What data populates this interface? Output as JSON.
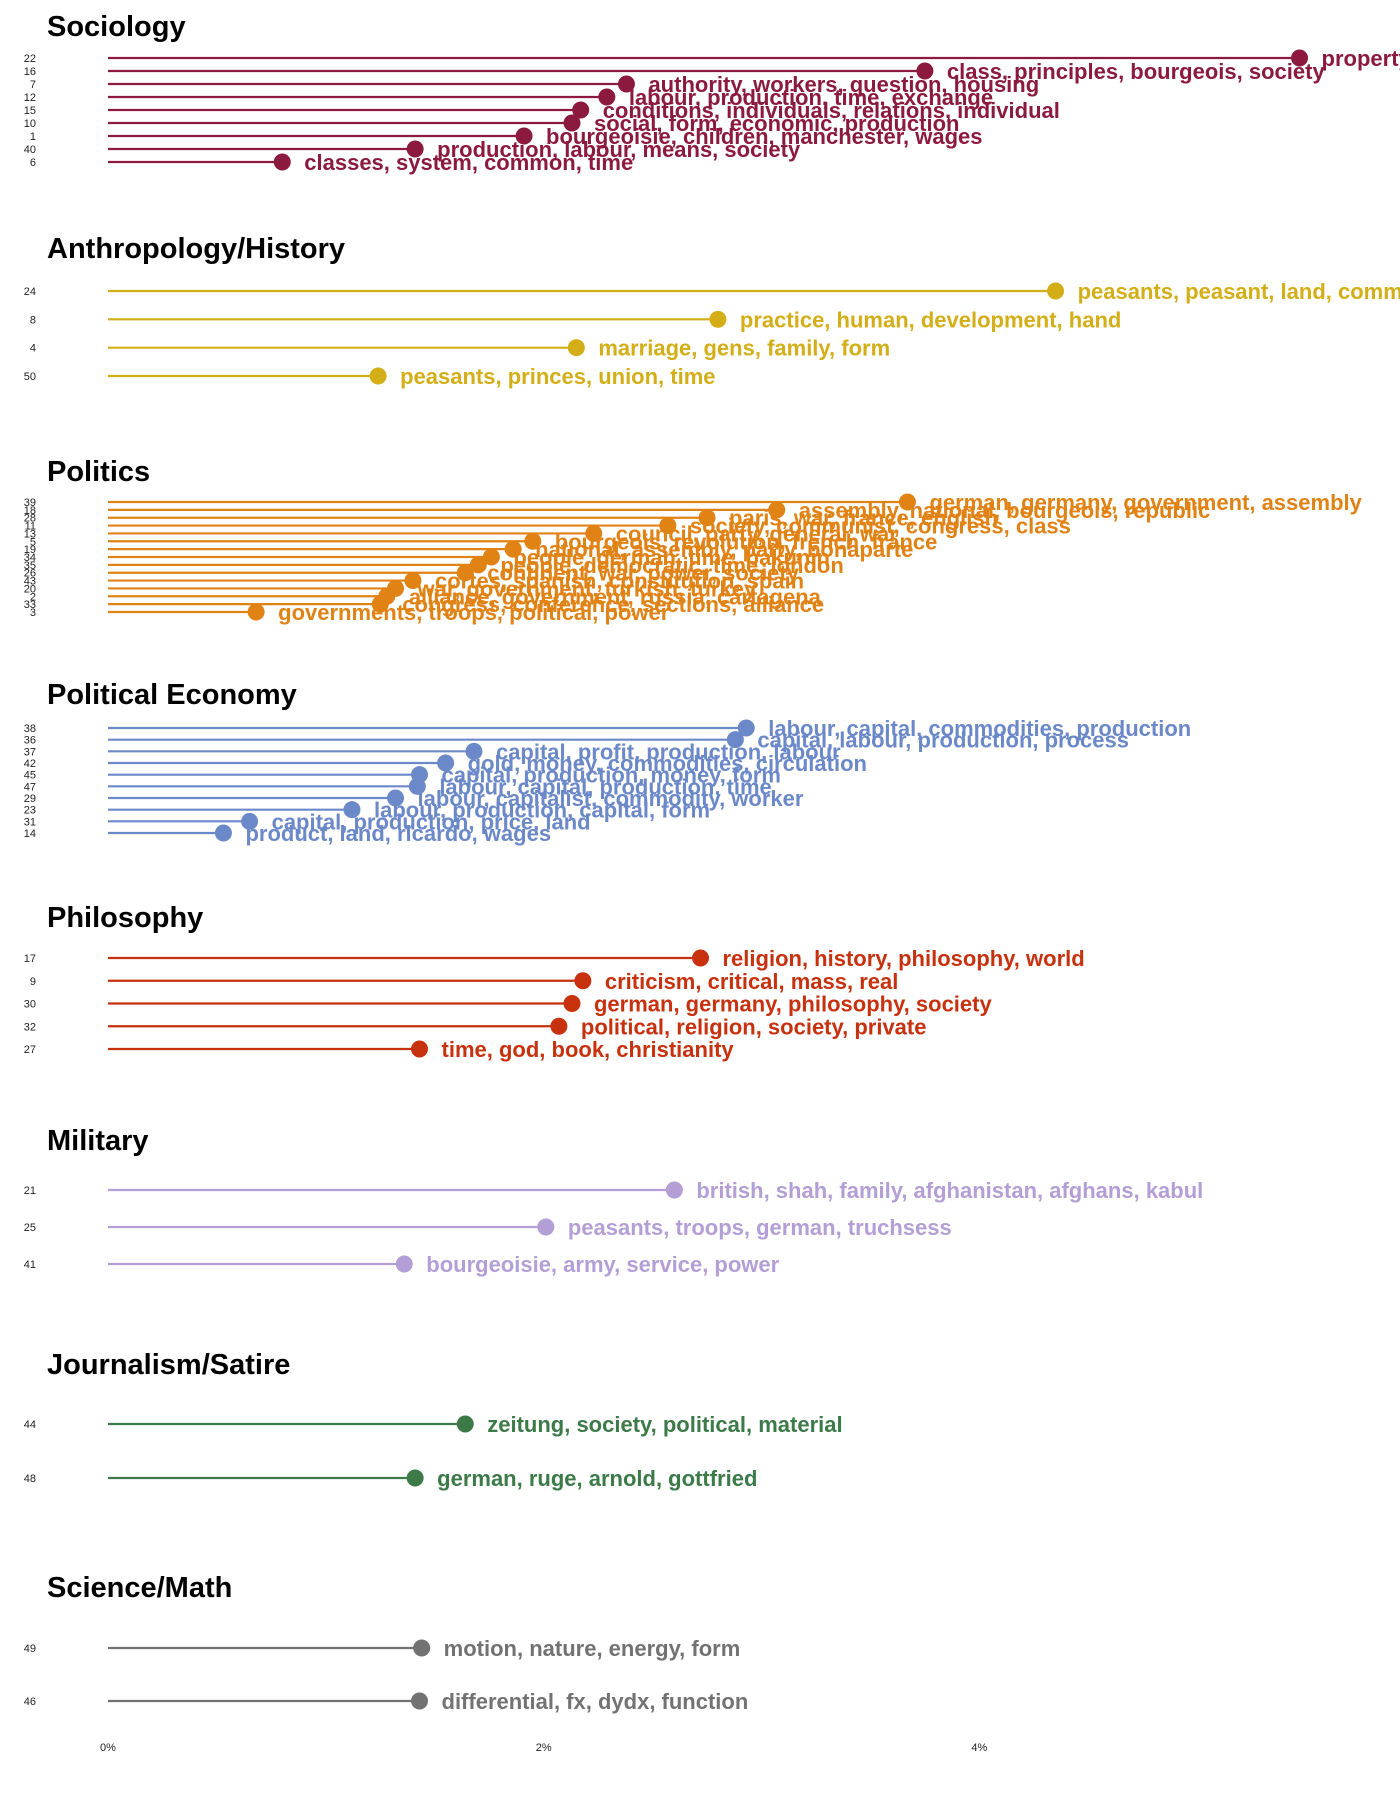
{
  "chart_data": {
    "type": "lollipop",
    "xlim": [
      0,
      0.06
    ],
    "ticks": [
      {
        "value": 0,
        "label": "0%"
      },
      {
        "value": 0.02,
        "label": "2%"
      },
      {
        "value": 0.04,
        "label": "4%"
      }
    ],
    "xlabel": "",
    "grid": false,
    "panels": [
      {
        "title": "Sociology",
        "color": "#8b1a3e",
        "topics": [
          {
            "id": "22",
            "value": 0.0547,
            "label": "property, value, labour, production"
          },
          {
            "id": "16",
            "value": 0.0375,
            "label": "class, principles, bourgeois, society"
          },
          {
            "id": "7",
            "value": 0.0238,
            "label": "authority, workers, question, housing"
          },
          {
            "id": "12",
            "value": 0.0229,
            "label": "labour, production, time, exchange"
          },
          {
            "id": "15",
            "value": 0.0217,
            "label": "conditions, individuals, relations, individual"
          },
          {
            "id": "10",
            "value": 0.0213,
            "label": "social, form, economic, production"
          },
          {
            "id": "1",
            "value": 0.0191,
            "label": "bourgeoisie, children, manchester, wages"
          },
          {
            "id": "40",
            "value": 0.0141,
            "label": "production, labour, means, society"
          },
          {
            "id": "6",
            "value": 0.008,
            "label": "classes, system, common, time"
          }
        ]
      },
      {
        "title": "Anthropology/History",
        "color": "#d4ae16",
        "topics": [
          {
            "id": "24",
            "value": 0.0435,
            "label": "peasants, peasant, land, commune"
          },
          {
            "id": "8",
            "value": 0.028,
            "label": "practice, human, development, hand"
          },
          {
            "id": "4",
            "value": 0.0215,
            "label": "marriage, gens, family, form"
          },
          {
            "id": "50",
            "value": 0.0124,
            "label": "peasants, princes, union, time"
          }
        ]
      },
      {
        "title": "Politics",
        "color": "#e08214",
        "topics": [
          {
            "id": "39",
            "value": 0.0367,
            "label": "german, germany, government, assembly"
          },
          {
            "id": "18",
            "value": 0.0307,
            "label": "assembly, national, bourgeois, republic"
          },
          {
            "id": "28",
            "value": 0.0275,
            "label": "paris, war, france, english"
          },
          {
            "id": "11",
            "value": 0.0257,
            "label": "society, communist, congress, class"
          },
          {
            "id": "13",
            "value": 0.0223,
            "label": "council, party, general, war"
          },
          {
            "id": "5",
            "value": 0.0195,
            "label": "bourgeois, revolution, french, france"
          },
          {
            "id": "19",
            "value": 0.0186,
            "label": "national, assembly, party, bonaparte"
          },
          {
            "id": "34",
            "value": 0.0176,
            "label": "people, german, time, bakunin"
          },
          {
            "id": "35",
            "value": 0.017,
            "label": "people, democratic, time, london"
          },
          {
            "id": "26",
            "value": 0.0164,
            "label": "continent, war, power, society"
          },
          {
            "id": "43",
            "value": 0.014,
            "label": "cortes, spanish, constitution, spain"
          },
          {
            "id": "20",
            "value": 0.0132,
            "label": "war, government, turkish, turkey"
          },
          {
            "id": "2",
            "value": 0.0128,
            "label": "alliance, government, russia, cartagena"
          },
          {
            "id": "33",
            "value": 0.0125,
            "label": "congress, conference, sections, alliance"
          },
          {
            "id": "3",
            "value": 0.0068,
            "label": "governments, troops, political, power"
          }
        ]
      },
      {
        "title": "Political Economy",
        "color": "#6b88c8",
        "topics": [
          {
            "id": "38",
            "value": 0.0293,
            "label": "labour, capital, commodities, production"
          },
          {
            "id": "36",
            "value": 0.0288,
            "label": "capital, labour, production, process"
          },
          {
            "id": "37",
            "value": 0.0168,
            "label": "capital, profit, production, labour"
          },
          {
            "id": "42",
            "value": 0.0155,
            "label": "gold, money, commodities, circulation"
          },
          {
            "id": "45",
            "value": 0.0143,
            "label": "capital, production, money, form"
          },
          {
            "id": "47",
            "value": 0.0142,
            "label": "labour, capital, production, time"
          },
          {
            "id": "29",
            "value": 0.0132,
            "label": "labour, capitalist, commodity, worker"
          },
          {
            "id": "23",
            "value": 0.0112,
            "label": "labour, production, capital, form"
          },
          {
            "id": "31",
            "value": 0.0065,
            "label": "capital, production, price, land"
          },
          {
            "id": "14",
            "value": 0.0053,
            "label": "product, land, ricardo, wages"
          }
        ]
      },
      {
        "title": "Philosophy",
        "color": "#c8310e",
        "topics": [
          {
            "id": "17",
            "value": 0.0272,
            "label": "religion, history, philosophy, world"
          },
          {
            "id": "9",
            "value": 0.0218,
            "label": "criticism, critical, mass, real"
          },
          {
            "id": "30",
            "value": 0.0213,
            "label": "german, germany, philosophy, society"
          },
          {
            "id": "32",
            "value": 0.0207,
            "label": "political, religion, society, private"
          },
          {
            "id": "27",
            "value": 0.0143,
            "label": "time, god, book, christianity"
          }
        ]
      },
      {
        "title": "Military",
        "color": "#b39ed6",
        "topics": [
          {
            "id": "21",
            "value": 0.026,
            "label": "british, shah, family, afghanistan, afghans, kabul"
          },
          {
            "id": "25",
            "value": 0.0201,
            "label": "peasants, troops, german, truchsess"
          },
          {
            "id": "41",
            "value": 0.0136,
            "label": "bourgeoisie, army, service, power"
          }
        ]
      },
      {
        "title": "Journalism/Satire",
        "color": "#3c7a48",
        "topics": [
          {
            "id": "44",
            "value": 0.0164,
            "label": "zeitung, society, political, material"
          },
          {
            "id": "48",
            "value": 0.0141,
            "label": "german, ruge, arnold, gottfried"
          }
        ]
      },
      {
        "title": "Science/Math",
        "color": "#727272",
        "topics": [
          {
            "id": "49",
            "value": 0.0144,
            "label": "motion, nature, energy, form"
          },
          {
            "id": "46",
            "value": 0.0143,
            "label": "differential, fx, dydx, function"
          }
        ]
      }
    ]
  }
}
